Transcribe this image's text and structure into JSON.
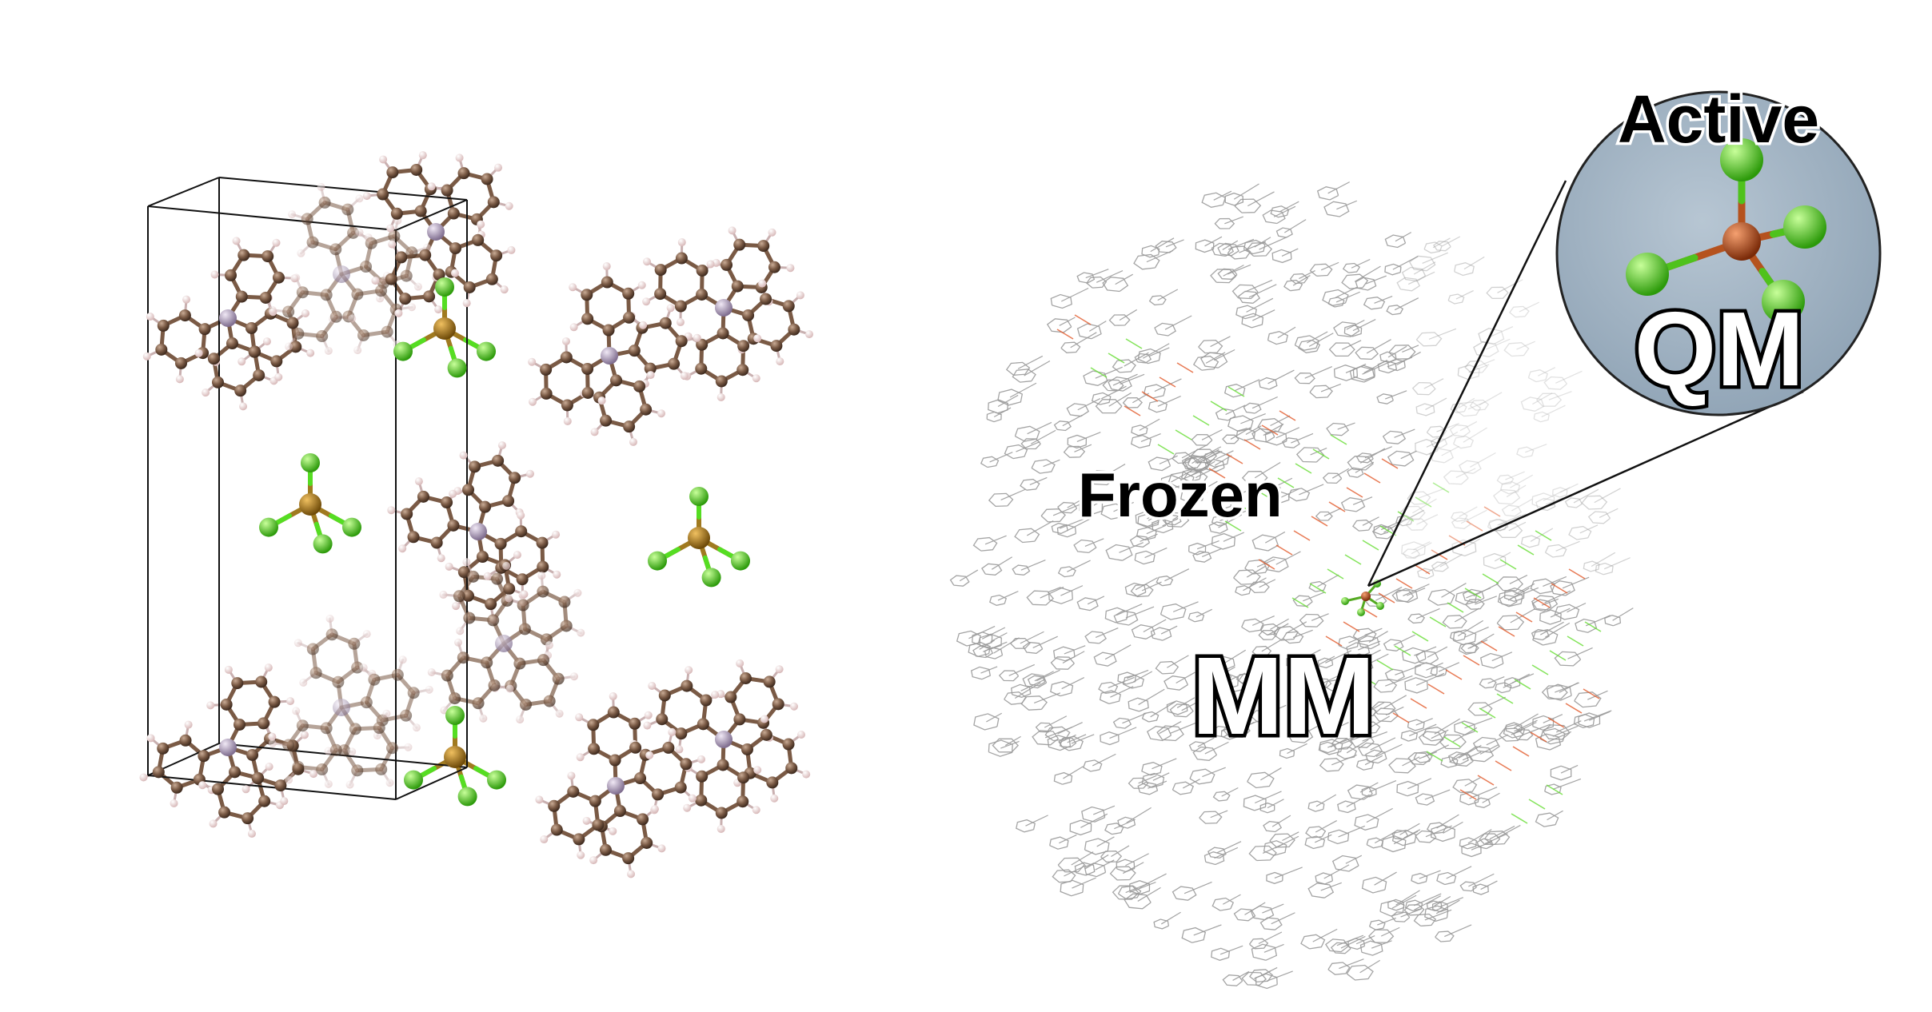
{
  "labels": {
    "active": "Active",
    "qm": "QM",
    "frozen": "Frozen",
    "mm": "MM"
  },
  "colors": {
    "carbon": "#7a5a45",
    "hydrogen": "#ecd6d6",
    "phosphorus": "#a795b1",
    "metal": "#b07a16",
    "halogen": "#55dd22",
    "lattice": "#111111",
    "wireframe": "#9a9a9a",
    "inset_bg": "#9eb0bf",
    "qm_center": "#c2521c"
  },
  "icons": {
    "left_panel": "crystal-unit-cell-icon",
    "right_panel": "qmmm-cluster-icon",
    "inset": "qm-region-magnifier-icon"
  }
}
